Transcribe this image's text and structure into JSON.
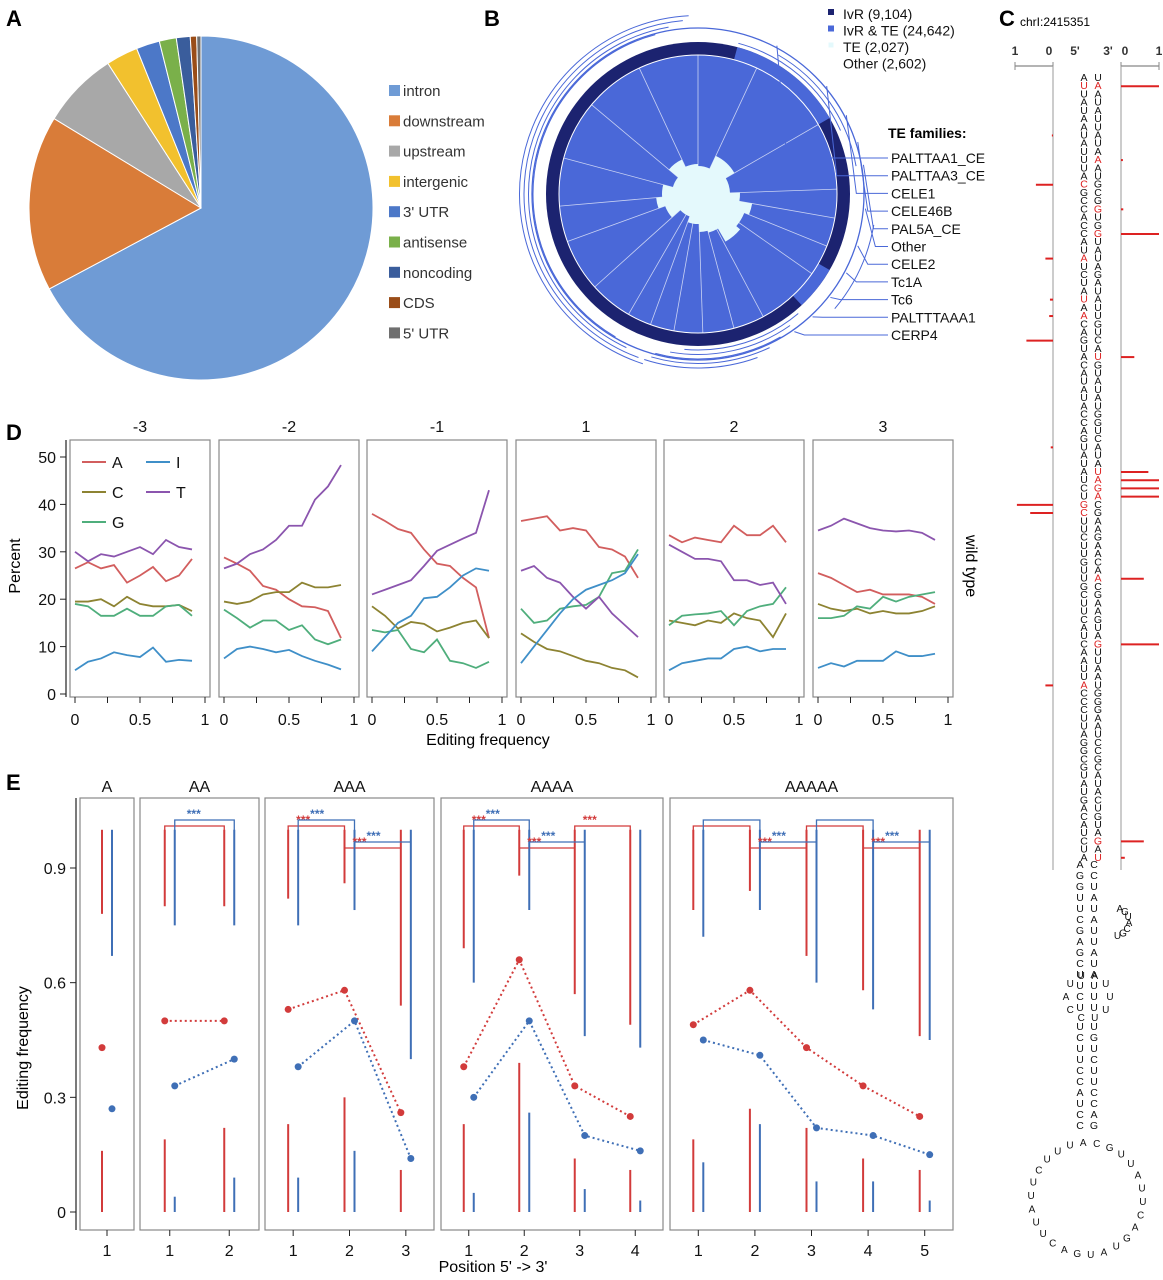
{
  "chart_data": [
    {
      "panel": "A",
      "type": "pie",
      "legend": [
        "intron",
        "downstream",
        "upstream",
        "intergenic",
        "3' UTR",
        "antisense",
        "noncoding",
        "CDS",
        "5' UTR"
      ],
      "values": [
        67.2,
        16.5,
        7.2,
        3.0,
        2.2,
        1.6,
        1.3,
        0.6,
        0.4
      ],
      "colors": [
        "#6f9bd5",
        "#d97c39",
        "#a8a8a8",
        "#f2c12e",
        "#4c78c8",
        "#7ab04a",
        "#3a5d9c",
        "#9a4d18",
        "#6f6f6f"
      ]
    },
    {
      "panel": "B",
      "type": "other",
      "legend": [
        {
          "label": "IvR (9,104)",
          "color": "#1c2370"
        },
        {
          "label": "IvR & TE (24,642)",
          "color": "#4a68d8"
        },
        {
          "label": "TE (2,027)",
          "color": "#e4f9fc"
        },
        {
          "label": "Other (2,602)",
          "color": "#ffffff"
        }
      ],
      "te_title": "TE families:",
      "te_families": [
        "PALTTAA1_CE",
        "PALTTAA3_CE",
        "CELE1",
        "CELE46B",
        "PAL5A_CE",
        "Other",
        "CELE2",
        "Tc1A",
        "Tc6",
        "PALTTTAAA1",
        "CERP4"
      ]
    },
    {
      "panel": "C",
      "type": "bar",
      "title": "chrI:2415351",
      "axis_ticks": [
        "1",
        "0",
        "5'",
        "3'",
        "0",
        "1"
      ],
      "hairpin_seq_5prime": "AUUAUAAUAUUUACGCCACCAUAUCUAUAACAGUACAUAUACCAGUAUAUCUGCUUCUUGUUGCUUCAUCAAUUACCCUUAGGCGUAUGACAUCUAUUCUCCAUUUUAUUCUGU",
      "left_bar_rows": [
        7,
        13,
        22,
        27,
        29,
        32,
        45,
        52,
        53,
        74
      ],
      "left_bar_values": [
        0.03,
        0.45,
        0.2,
        0.08,
        0.1,
        0.7,
        0.06,
        0.95,
        0.6,
        0.2
      ],
      "right_bar_rows": [
        1,
        10,
        16,
        19,
        34,
        48,
        49,
        50,
        51,
        61,
        69,
        93,
        95
      ],
      "right_bar_values": [
        1.0,
        0.05,
        0.06,
        1.0,
        0.35,
        0.72,
        1.0,
        1.0,
        1.0,
        0.6,
        1.0,
        0.6,
        0.1
      ]
    },
    {
      "panel": "D",
      "type": "line",
      "facets": [
        "-3",
        "-2",
        "-1",
        "1",
        "2",
        "3"
      ],
      "x": [
        0,
        0.1,
        0.2,
        0.3,
        0.4,
        0.5,
        0.6,
        0.7,
        0.8,
        0.9
      ],
      "xlabel": "Editing frequency",
      "ylabel": "Percent",
      "ylim": [
        0,
        50
      ],
      "yticks": [
        0,
        10,
        20,
        30,
        40,
        50
      ],
      "xticks": [
        "0",
        "0.5",
        "1"
      ],
      "strip_label": "wild type",
      "legend": [
        {
          "label": "A",
          "color": "#d25e5e"
        },
        {
          "label": "I",
          "color": "#3f8fc8"
        },
        {
          "label": "C",
          "color": "#8d8332"
        },
        {
          "label": "T",
          "color": "#8b55ae"
        },
        {
          "label": "G",
          "color": "#4fae7c"
        }
      ],
      "series_by_facet": {
        "-3": {
          "A": [
            26.5,
            27.8,
            26.5,
            27.2,
            23.5,
            25,
            26.8,
            23.8,
            25,
            28.5
          ],
          "C": [
            19.5,
            19.5,
            20,
            18.5,
            20.5,
            19,
            18.5,
            18.5,
            18.8,
            17.5
          ],
          "G": [
            19,
            18.5,
            16.5,
            16.5,
            18,
            16.5,
            16.5,
            18.5,
            18.8,
            16.5
          ],
          "T": [
            30,
            28,
            29.5,
            29,
            30,
            31,
            29.5,
            32.5,
            31,
            30.5
          ],
          "I": [
            5,
            6.8,
            7.5,
            8.8,
            8.2,
            7.8,
            9.8,
            6.8,
            7.2,
            7
          ]
        },
        "-2": {
          "A": [
            28.8,
            27.5,
            26,
            22.8,
            22,
            20,
            18.5,
            18.3,
            17.5,
            11.8
          ],
          "C": [
            19.5,
            19,
            19.5,
            21,
            21.5,
            21.5,
            23.5,
            22.5,
            22.5,
            23
          ],
          "G": [
            17.8,
            16,
            14,
            15.5,
            15.5,
            13.5,
            14.5,
            11.5,
            10.5,
            11.5
          ],
          "T": [
            26.5,
            27.5,
            29.5,
            30.5,
            32.5,
            35.5,
            35.5,
            41,
            43.8,
            48.3
          ],
          "I": [
            7.5,
            9.5,
            10,
            9.5,
            8.8,
            9.3,
            8,
            7,
            6.2,
            5.2
          ]
        },
        "-1": {
          "A": [
            38,
            36.5,
            34.8,
            34,
            30.5,
            27.5,
            27,
            24.5,
            22.5,
            11.8
          ],
          "C": [
            18.5,
            16.5,
            13.8,
            15.2,
            14.8,
            13.2,
            14,
            15,
            15.5,
            11.8
          ],
          "G": [
            13.5,
            13,
            13.5,
            9.5,
            8.8,
            11.5,
            7,
            6.5,
            5.5,
            6.8
          ],
          "T": [
            21,
            22,
            23,
            24,
            27,
            30.2,
            31.5,
            32.8,
            34,
            43
          ],
          "I": [
            9,
            12,
            15,
            16.5,
            20.2,
            20.5,
            22.5,
            25,
            26.5,
            26
          ]
        },
        "1": {
          "A": [
            36.5,
            37,
            37.5,
            34.5,
            35,
            34.5,
            31,
            30.5,
            29,
            24.5
          ],
          "C": [
            12.8,
            11,
            9.5,
            9,
            8,
            7,
            6.5,
            5.5,
            5,
            3.5
          ],
          "G": [
            18,
            15,
            15.5,
            18,
            18.5,
            18.8,
            20.5,
            25.5,
            26,
            30.5
          ],
          "T": [
            26,
            27,
            24.5,
            23.5,
            20.5,
            18,
            20.5,
            17,
            14.5,
            12
          ],
          "I": [
            6.5,
            10,
            13.5,
            17,
            20,
            22,
            23,
            24,
            25.5,
            29.5
          ]
        },
        "2": {
          "A": [
            33.5,
            32,
            33,
            32.5,
            32,
            35.5,
            33.5,
            33.5,
            35.5,
            32
          ],
          "C": [
            15.5,
            15,
            14.5,
            15.5,
            15,
            17,
            16,
            15.5,
            12,
            17
          ],
          "G": [
            14.5,
            16.5,
            16.8,
            17,
            17.5,
            14.5,
            17.5,
            18.5,
            19,
            22.5
          ],
          "T": [
            31.5,
            30,
            28.5,
            28.5,
            28,
            24,
            24,
            23,
            23.5,
            19
          ],
          "I": [
            5,
            6.5,
            7,
            7.5,
            7.5,
            9.5,
            10,
            9,
            9.5,
            9.5
          ]
        },
        "3": {
          "A": [
            25.5,
            24.5,
            23,
            21.5,
            22,
            21,
            21,
            21,
            20.5,
            19
          ],
          "C": [
            19,
            18,
            17.5,
            18,
            17,
            17.5,
            17,
            17,
            17.5,
            18.5
          ],
          "G": [
            16,
            16,
            16.5,
            18.5,
            18,
            20.5,
            19.5,
            20.5,
            21,
            21.5
          ],
          "T": [
            34.5,
            35.5,
            37,
            36,
            35,
            34.5,
            34.3,
            34.5,
            34,
            32.5
          ],
          "I": [
            5.5,
            6.5,
            5.8,
            7,
            7,
            7,
            9,
            8,
            8,
            8.5
          ]
        }
      }
    },
    {
      "panel": "E",
      "type": "scatter",
      "facets": [
        "A",
        "AA",
        "AAA",
        "AAAA",
        "AAAAA"
      ],
      "xlabel": "Position 5' -> 3'",
      "ylabel": "Editing frequency",
      "ylim": [
        0,
        1
      ],
      "yticks": [
        0.0,
        0.3,
        0.6,
        0.9
      ],
      "sig_label": "***",
      "colors": {
        "red": "#d23b3b",
        "blue": "#3f6fb6"
      },
      "facet_data": [
        {
          "positions": [
            "1"
          ],
          "red_mean": [
            0.43
          ],
          "blue_mean": [
            0.27
          ],
          "red_lo": [
            [
              0.0,
              0.16
            ]
          ],
          "red_hi": [
            [
              0.78,
              1.0
            ]
          ],
          "blue_lo": [
            [
              0.0,
              0.0
            ]
          ],
          "blue_hi": [
            [
              0.67,
              1.0
            ]
          ],
          "sig_pairs": []
        },
        {
          "positions": [
            "1",
            "2"
          ],
          "red_mean": [
            0.5,
            0.5
          ],
          "blue_mean": [
            0.33,
            0.4
          ],
          "red_lo": [
            [
              0.0,
              0.19
            ],
            [
              0.0,
              0.22
            ]
          ],
          "red_hi": [
            [
              0.8,
              1.0
            ],
            [
              0.8,
              1.0
            ]
          ],
          "blue_lo": [
            [
              0.0,
              0.04
            ],
            [
              0.0,
              0.09
            ]
          ],
          "blue_hi": [
            [
              0.75,
              1.0
            ],
            [
              0.75,
              1.0
            ]
          ],
          "sig_pairs": [
            {
              "a": 1,
              "b": 2,
              "color": "red",
              "label": ""
            },
            {
              "a": 1,
              "b": 2,
              "color": "blue",
              "label": "***"
            }
          ]
        },
        {
          "positions": [
            "1",
            "2",
            "3"
          ],
          "red_mean": [
            0.53,
            0.58,
            0.26
          ],
          "blue_mean": [
            0.38,
            0.5,
            0.14
          ],
          "red_lo": [
            [
              0.0,
              0.23
            ],
            [
              0.0,
              0.3
            ],
            [
              0.0,
              0.11
            ]
          ],
          "red_hi": [
            [
              0.82,
              1.0
            ],
            [
              0.86,
              1.0
            ],
            [
              0.54,
              1.0
            ]
          ],
          "blue_lo": [
            [
              0.0,
              0.09
            ],
            [
              0.0,
              0.16
            ],
            [
              0.0,
              0.0
            ]
          ],
          "blue_hi": [
            [
              0.75,
              1.0
            ],
            [
              0.79,
              1.0
            ],
            [
              0.4,
              1.0
            ]
          ],
          "sig_pairs": [
            {
              "a": 1,
              "b": 2,
              "color": "red",
              "label": "***"
            },
            {
              "a": 1,
              "b": 2,
              "color": "blue",
              "label": "***"
            },
            {
              "a": 2,
              "b": 3,
              "color": "red",
              "label": "***"
            },
            {
              "a": 2,
              "b": 3,
              "color": "blue",
              "label": "***"
            }
          ]
        },
        {
          "positions": [
            "1",
            "2",
            "3",
            "4"
          ],
          "red_mean": [
            0.38,
            0.66,
            0.33,
            0.25
          ],
          "blue_mean": [
            0.3,
            0.5,
            0.2,
            0.16
          ],
          "red_lo": [
            [
              0.0,
              0.23
            ],
            [
              0.0,
              0.39
            ],
            [
              0.0,
              0.14
            ],
            [
              0.0,
              0.11
            ]
          ],
          "red_hi": [
            [
              0.69,
              1.0
            ],
            [
              0.88,
              1.0
            ],
            [
              0.57,
              1.0
            ],
            [
              0.49,
              1.0
            ]
          ],
          "blue_lo": [
            [
              0.0,
              0.05
            ],
            [
              0.0,
              0.26
            ],
            [
              0.0,
              0.06
            ],
            [
              0.0,
              0.03
            ]
          ],
          "blue_hi": [
            [
              0.6,
              1.0
            ],
            [
              0.79,
              1.0
            ],
            [
              0.46,
              1.0
            ],
            [
              0.43,
              1.0
            ]
          ],
          "sig_pairs": [
            {
              "a": 1,
              "b": 2,
              "color": "red",
              "label": "***"
            },
            {
              "a": 1,
              "b": 2,
              "color": "blue",
              "label": "***"
            },
            {
              "a": 2,
              "b": 3,
              "color": "red",
              "label": "***"
            },
            {
              "a": 2,
              "b": 3,
              "color": "blue",
              "label": "***"
            },
            {
              "a": 3,
              "b": 4,
              "color": "red",
              "label": "***"
            }
          ]
        },
        {
          "positions": [
            "1",
            "2",
            "3",
            "4",
            "5"
          ],
          "red_mean": [
            0.49,
            0.58,
            0.43,
            0.33,
            0.25
          ],
          "blue_mean": [
            0.45,
            0.41,
            0.22,
            0.2,
            0.15
          ],
          "red_lo": [
            [
              0.0,
              0.19
            ],
            [
              0.0,
              0.27
            ],
            [
              0.0,
              0.22
            ],
            [
              0.0,
              0.14
            ],
            [
              0.0,
              0.11
            ]
          ],
          "red_hi": [
            [
              0.79,
              1.0
            ],
            [
              0.84,
              1.0
            ],
            [
              0.67,
              1.0
            ],
            [
              0.58,
              1.0
            ],
            [
              0.46,
              1.0
            ]
          ],
          "blue_lo": [
            [
              0.0,
              0.13
            ],
            [
              0.0,
              0.23
            ],
            [
              0.0,
              0.08
            ],
            [
              0.0,
              0.08
            ],
            [
              0.0,
              0.03
            ]
          ],
          "blue_hi": [
            [
              0.72,
              1.0
            ],
            [
              0.79,
              1.0
            ],
            [
              0.6,
              1.0
            ],
            [
              0.53,
              1.0
            ],
            [
              0.45,
              1.0
            ]
          ],
          "sig_pairs": [
            {
              "a": 1,
              "b": 2,
              "color": "red",
              "label": ""
            },
            {
              "a": 1,
              "b": 2,
              "color": "blue",
              "label": ""
            },
            {
              "a": 2,
              "b": 3,
              "color": "red",
              "label": "***"
            },
            {
              "a": 2,
              "b": 3,
              "color": "blue",
              "label": "***"
            },
            {
              "a": 3,
              "b": 4,
              "color": "red",
              "label": ""
            },
            {
              "a": 3,
              "b": 4,
              "color": "blue",
              "label": ""
            },
            {
              "a": 4,
              "b": 5,
              "color": "red",
              "label": "***"
            },
            {
              "a": 4,
              "b": 5,
              "color": "blue",
              "label": "***"
            }
          ]
        }
      ]
    }
  ],
  "panel_labels": [
    "A",
    "B",
    "C",
    "D",
    "E"
  ]
}
